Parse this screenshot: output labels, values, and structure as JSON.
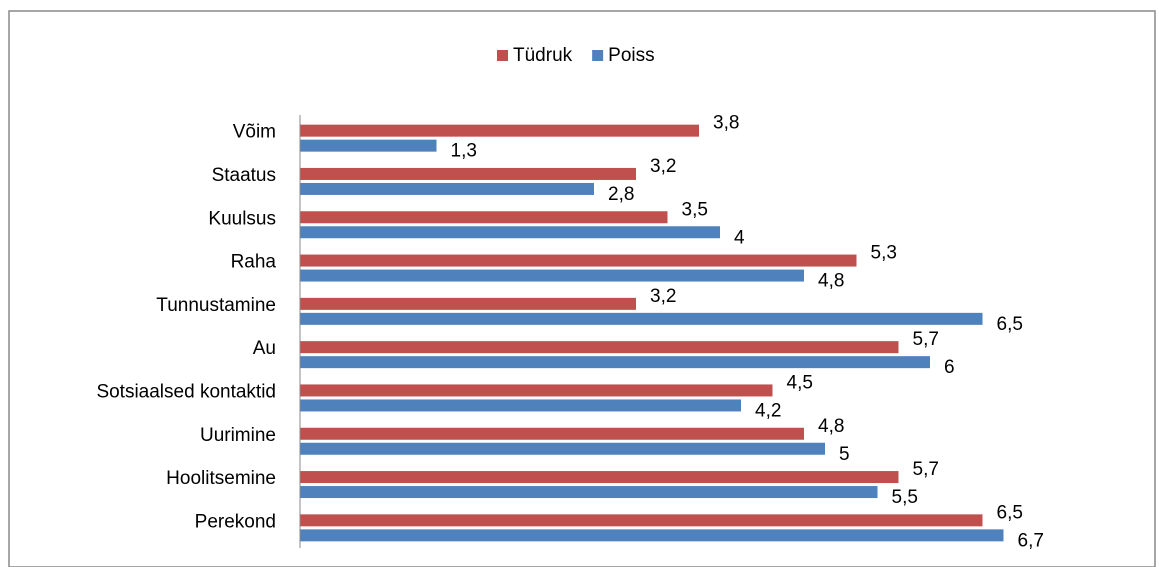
{
  "chart_data": {
    "type": "bar",
    "orientation": "horizontal",
    "categories": [
      "Võim",
      "Staatus",
      "Kuulsus",
      "Raha",
      "Tunnustamine",
      "Au",
      "Sotsiaalsed kontaktid",
      "Uurimine",
      "Hoolitsemine",
      "Perekond"
    ],
    "series": [
      {
        "name": "Tüdruk",
        "color": "#c0504d",
        "values": [
          3.8,
          3.2,
          3.5,
          5.3,
          3.2,
          5.7,
          4.5,
          4.8,
          5.7,
          6.5
        ],
        "value_labels": [
          "3,8",
          "3,2",
          "3,5",
          "5,3",
          "3,2",
          "5,7",
          "4,5",
          "4,8",
          "5,7",
          "6,5"
        ]
      },
      {
        "name": "Poiss",
        "color": "#4f81bd",
        "values": [
          1.3,
          2.8,
          4,
          4.8,
          6.5,
          6,
          4.2,
          5,
          5.5,
          6.7
        ],
        "value_labels": [
          "1,3",
          "2,8",
          "4",
          "4,8",
          "6,5",
          "6",
          "4,2",
          "5",
          "5,5",
          "6,7"
        ]
      }
    ],
    "xlim": [
      0,
      7
    ],
    "legend": "top"
  }
}
